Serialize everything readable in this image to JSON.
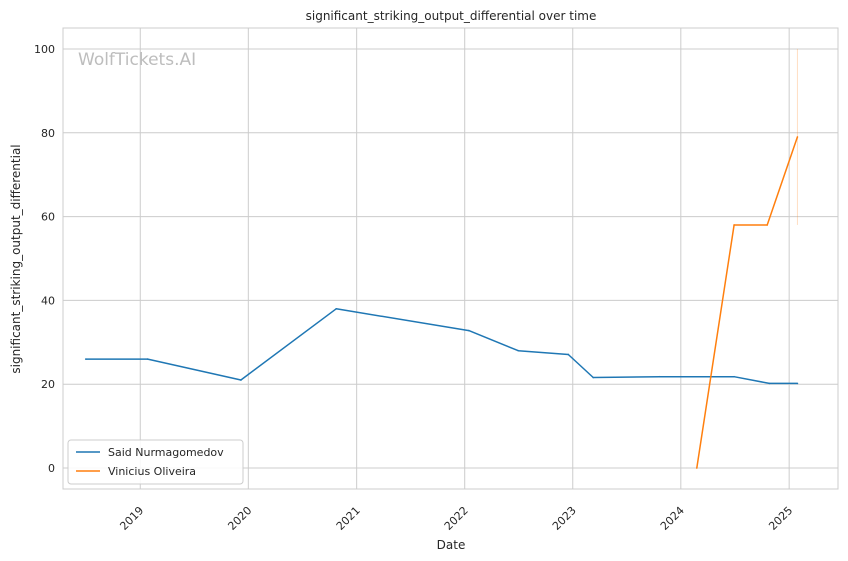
{
  "chart_data": {
    "type": "line",
    "title": "significant_striking_output_differential over time",
    "xlabel": "Date",
    "ylabel": "significant_striking_output_differential",
    "watermark": "WolfTickets.AI",
    "xlim": [
      "2018-04-15",
      "2025-06-15"
    ],
    "ylim": [
      -5,
      105
    ],
    "x_ticks": [
      "2019-01-01",
      "2020-01-01",
      "2021-01-01",
      "2022-01-01",
      "2023-01-01",
      "2024-01-01",
      "2025-01-01"
    ],
    "x_tick_labels": [
      "2019",
      "2020",
      "2021",
      "2022",
      "2023",
      "2024",
      "2025"
    ],
    "y_ticks": [
      0,
      20,
      40,
      60,
      80,
      100
    ],
    "y_tick_labels": [
      "0",
      "20",
      "40",
      "60",
      "80",
      "100"
    ],
    "grid": true,
    "legend_position": "lower-left",
    "series": [
      {
        "name": "Said Nurmagomedov",
        "color": "#1f77b4",
        "points": [
          {
            "x": "2018-07-01",
            "y": 26
          },
          {
            "x": "2019-01-26",
            "y": 26
          },
          {
            "x": "2019-12-07",
            "y": 21
          },
          {
            "x": "2020-10-24",
            "y": 38
          },
          {
            "x": "2022-01-15",
            "y": 32.8
          },
          {
            "x": "2022-07-01",
            "y": 28
          },
          {
            "x": "2022-12-17",
            "y": 27.1
          },
          {
            "x": "2023-03-11",
            "y": 21.6
          },
          {
            "x": "2023-10-21",
            "y": 21.8
          },
          {
            "x": "2024-06-29",
            "y": 21.8
          },
          {
            "x": "2024-10-26",
            "y": 20.2
          },
          {
            "x": "2025-01-29",
            "y": 20.2
          }
        ]
      },
      {
        "name": "Vinicius Oliveira",
        "color": "#ff7f0e",
        "points": [
          {
            "x": "2024-02-24",
            "y": 0
          },
          {
            "x": "2024-06-29",
            "y": 58
          },
          {
            "x": "2024-10-19",
            "y": 58
          },
          {
            "x": "2025-01-29",
            "y": 79
          }
        ],
        "band": {
          "x": "2025-01-29",
          "y_low": 58,
          "y_high": 100
        }
      }
    ]
  }
}
